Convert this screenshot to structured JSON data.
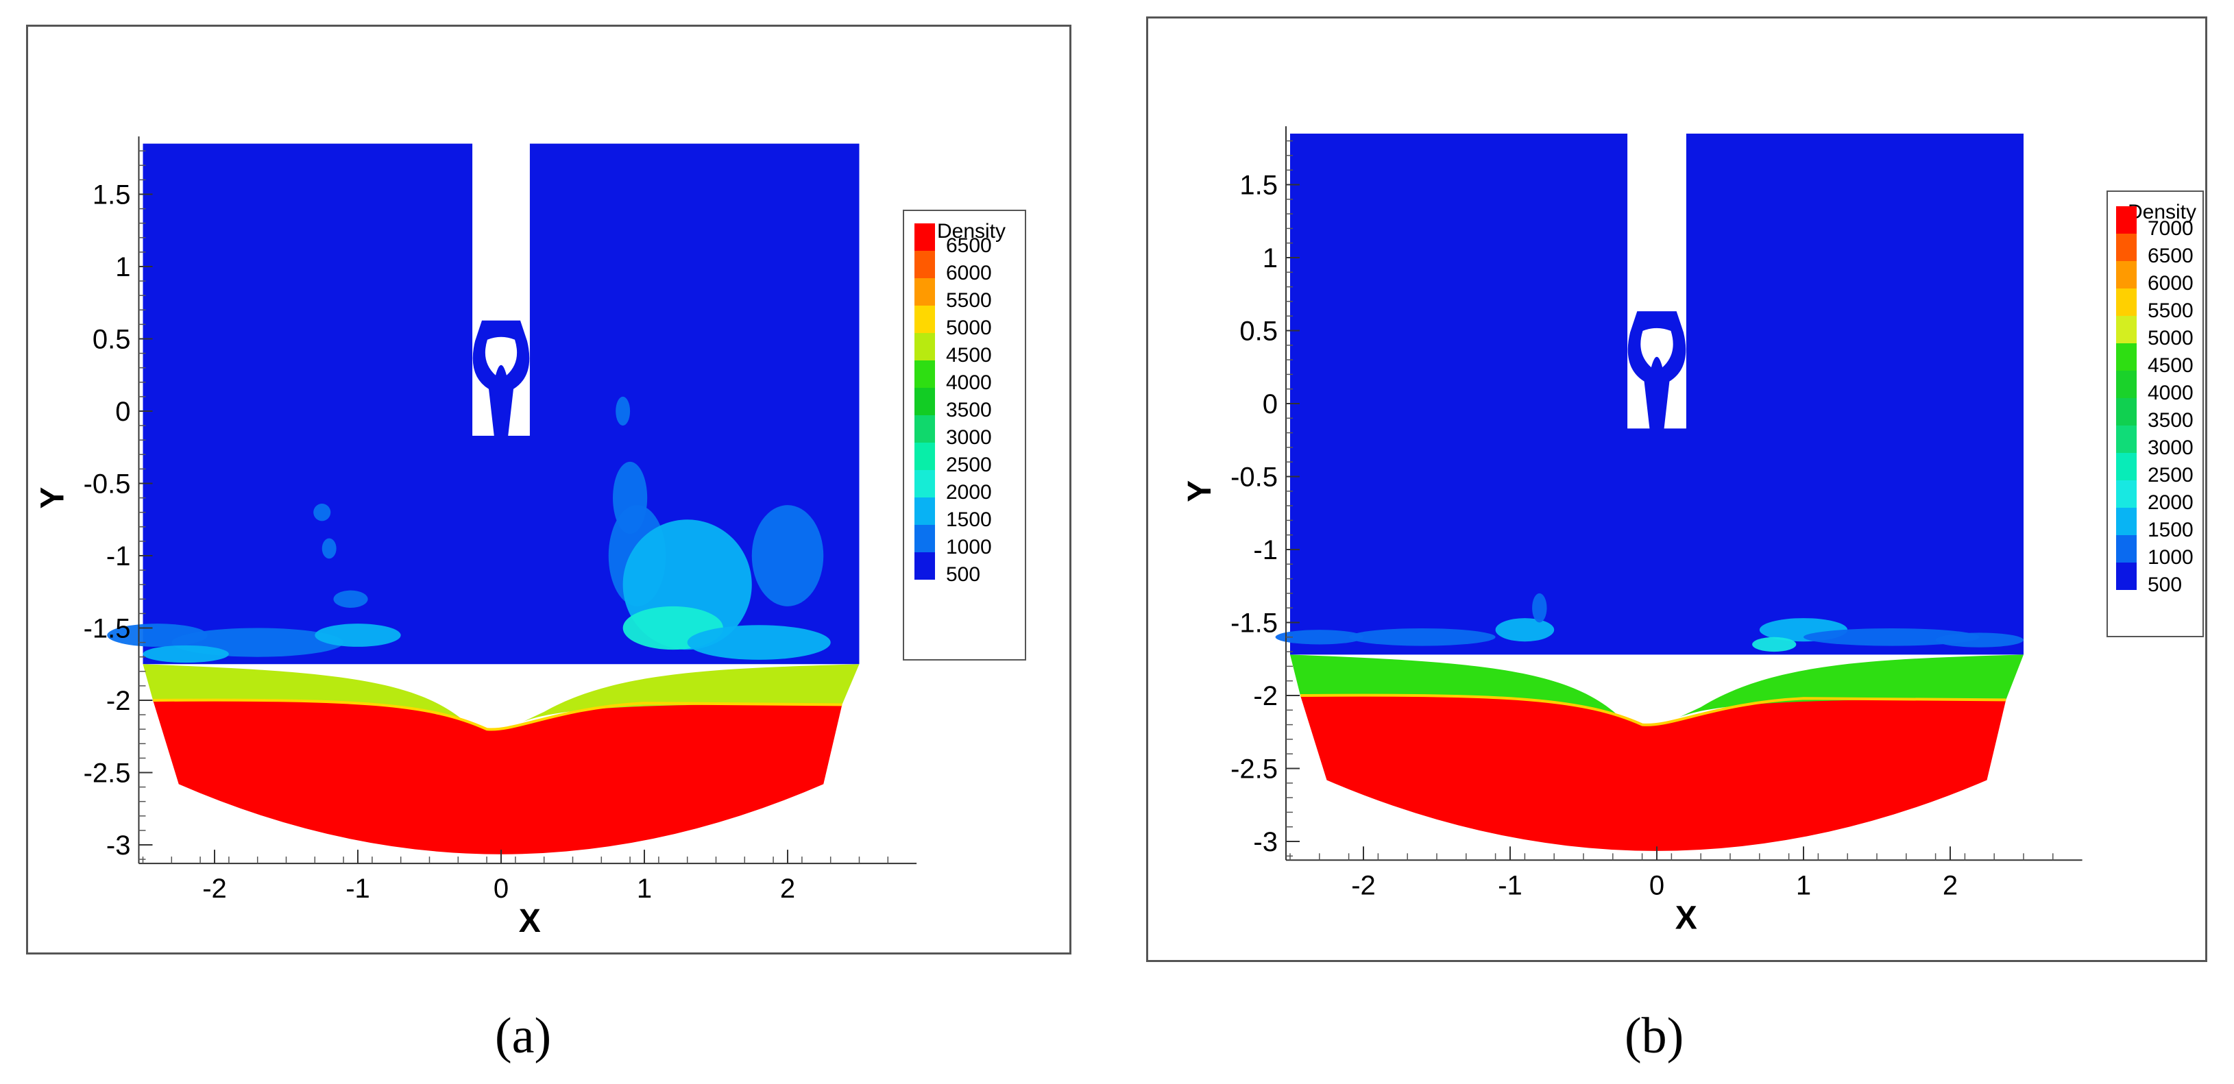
{
  "panels": [
    {
      "caption": "(a)"
    },
    {
      "caption": "(b)"
    }
  ],
  "chart_data": [
    {
      "type": "heatmap",
      "title": "",
      "xlabel": "X",
      "ylabel": "Y",
      "xlim": [
        -2.5,
        2.9
      ],
      "ylim": [
        -3.1,
        1.9
      ],
      "xticks": [
        "-2",
        "-1",
        "0",
        "1",
        "2"
      ],
      "xtick_values": [
        -2,
        -1,
        0,
        1,
        2
      ],
      "yticks": [
        "1.5",
        "1",
        "0.5",
        "0",
        "-0.5",
        "-1",
        "-1.5",
        "-2",
        "-2.5",
        "-3"
      ],
      "ytick_values": [
        1.5,
        1,
        0.5,
        0,
        -0.5,
        -1,
        -1.5,
        -2,
        -2.5,
        -3
      ],
      "legend": {
        "title": "Density",
        "levels": [
          "6500",
          "6000",
          "5500",
          "5000",
          "4500",
          "4000",
          "3500",
          "3000",
          "2500",
          "2000",
          "1500",
          "1000",
          "500"
        ],
        "colors": [
          "#ff0000",
          "#ff5a00",
          "#ff9a00",
          "#ffd800",
          "#b8ea10",
          "#2ede12",
          "#12cc24",
          "#10d86c",
          "#08eea8",
          "#16ecd6",
          "#08b2f4",
          "#0a72f0",
          "#0a16e4"
        ],
        "position": "right"
      },
      "bands": {
        "air_density": 500,
        "water_density": 1000,
        "bentonite_density": 4500,
        "steel_density": 6500,
        "interface_air_water_y": -1.75,
        "interface_water_mud_y": -2.0
      }
    },
    {
      "type": "heatmap",
      "title": "",
      "xlabel": "X",
      "ylabel": "Y",
      "xlim": [
        -2.5,
        2.9
      ],
      "ylim": [
        -3.1,
        1.9
      ],
      "xticks": [
        "-2",
        "-1",
        "0",
        "1",
        "2"
      ],
      "xtick_values": [
        -2,
        -1,
        0,
        1,
        2
      ],
      "yticks": [
        "1.5",
        "1",
        "0.5",
        "0",
        "-0.5",
        "-1",
        "-1.5",
        "-2",
        "-2.5",
        "-3"
      ],
      "ytick_values": [
        1.5,
        1,
        0.5,
        0,
        -0.5,
        -1,
        -1.5,
        -2,
        -2.5,
        -3
      ],
      "legend": {
        "title": "Density",
        "levels": [
          "7000",
          "6500",
          "6000",
          "5500",
          "5000",
          "4500",
          "4000",
          "3500",
          "3000",
          "2500",
          "2000",
          "1500",
          "1000",
          "500"
        ],
        "colors": [
          "#ff0000",
          "#ff5a00",
          "#ff9a00",
          "#ffd000",
          "#d4ee20",
          "#2ede12",
          "#1ad22a",
          "#10d050",
          "#10dc78",
          "#08ecb8",
          "#18e8e2",
          "#08b4f4",
          "#0a6af0",
          "#0a16e4"
        ],
        "position": "right"
      },
      "bands": {
        "air_density": 500,
        "water_density": 1000,
        "bentonite_density": 4500,
        "steel_density": 7000,
        "interface_air_water_y": -1.72,
        "interface_water_mud_y": -2.0
      }
    }
  ]
}
